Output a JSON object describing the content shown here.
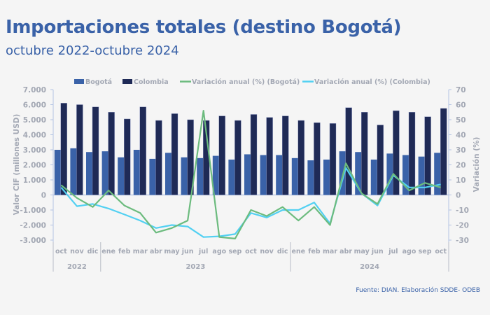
{
  "header": {
    "title": "Importaciones totales (destino Bogotá)",
    "subtitle": "octubre 2022-octubre 2024"
  },
  "footer": {
    "source": "Fuente: DIAN. Elaboración SDDE- ODEB"
  },
  "colors": {
    "bogota_bar": "#3a62a8",
    "colombia_bar": "#1f2a56",
    "bogota_line": "#6cbb7e",
    "colombia_line": "#52d0f2",
    "axis": "#b4c4e4",
    "text": "#a3a8b4",
    "title": "#3a62a8"
  },
  "chart_data": {
    "type": "bar",
    "title": "Importaciones totales (destino Bogotá)",
    "subtitle": "octubre 2022-octubre 2024",
    "ylabel": "Valor CIF (millones USD)",
    "y2label": "Variación (%)",
    "xlabel": "",
    "ylim": [
      -3000,
      7000
    ],
    "y_ticks": [
      "7.000",
      "6.000",
      "5.000",
      "4.000",
      "3.000",
      "2.000",
      "1.000",
      "0",
      "-1.000",
      "-2.000",
      "-3.000"
    ],
    "y2lim": [
      -30,
      70
    ],
    "y2_ticks": [
      "70",
      "60",
      "50",
      "40",
      "30",
      "20",
      "10",
      "0",
      "-10",
      "-20",
      "-30"
    ],
    "grid": false,
    "legend_position": "top",
    "categories": [
      "oct",
      "nov",
      "dic",
      "ene",
      "feb",
      "mar",
      "abr",
      "may",
      "jun",
      "jul",
      "ago",
      "sep",
      "oct",
      "nov",
      "dic",
      "ene",
      "feb",
      "mar",
      "abr",
      "may",
      "jun",
      "jul",
      "ago",
      "sep",
      "oct"
    ],
    "year_groups": [
      {
        "label": "2022",
        "count": 3
      },
      {
        "label": "2023",
        "count": 12
      },
      {
        "label": "2024",
        "count": 10
      }
    ],
    "series": [
      {
        "name": "Bogotá",
        "type": "bar",
        "axis": "left",
        "values": [
          3000,
          3100,
          2850,
          2900,
          2500,
          3000,
          2400,
          2800,
          2500,
          2450,
          2600,
          2350,
          2700,
          2650,
          2650,
          2450,
          2300,
          2350,
          2900,
          2850,
          2350,
          2750,
          2650,
          2550,
          2800
        ]
      },
      {
        "name": "Colombia",
        "type": "bar",
        "axis": "left",
        "values": [
          6100,
          6000,
          5850,
          5500,
          5050,
          5850,
          4950,
          5400,
          5000,
          4950,
          5250,
          4950,
          5350,
          5150,
          5250,
          4950,
          4800,
          4750,
          5800,
          5500,
          4650,
          5600,
          5500,
          5200,
          5750
        ]
      },
      {
        "name": "Variación anual (%) (Bogotá)",
        "type": "line",
        "axis": "right",
        "values": [
          6.5,
          -2,
          -8,
          3,
          -7,
          -12,
          -25,
          -22,
          -17,
          56,
          -28,
          -29,
          -10,
          -14,
          -8,
          -17,
          -8,
          -20,
          21,
          1,
          -6,
          14,
          3,
          8,
          5
        ]
      },
      {
        "name": "Variación anual (%) (Colombia)",
        "type": "line",
        "axis": "right",
        "values": [
          5,
          -7.5,
          -6,
          -9,
          -13,
          -17,
          -22,
          -20,
          -21,
          -28,
          -27.5,
          -26,
          -12,
          -15,
          -10,
          -10,
          -5,
          -19,
          18,
          1,
          -7,
          13,
          5,
          5,
          7
        ]
      }
    ]
  }
}
